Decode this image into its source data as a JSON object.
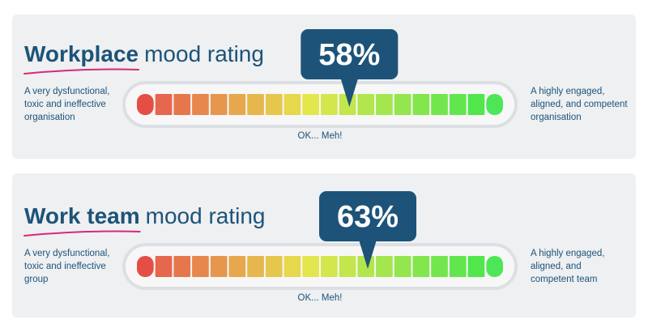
{
  "chart_data": [
    {
      "type": "gauge",
      "title_bold": "Workplace",
      "title_rest": "mood rating",
      "left_label": [
        "A very dysfunctional,",
        "toxic and ineffective",
        "organisation"
      ],
      "right_label": [
        "A highly engaged,",
        "aligned, and competent",
        "organisation"
      ],
      "center_label": "OK... Meh!",
      "values": [
        58
      ],
      "value_labels": [
        "58%"
      ],
      "xlim": [
        0,
        100
      ]
    },
    {
      "type": "gauge",
      "title_bold": "Work team",
      "title_rest": "mood rating",
      "left_label": [
        "A very dysfunctional,",
        "toxic and ineffective",
        "group"
      ],
      "right_label": [
        "A highly engaged,",
        "aligned, and",
        "competent team"
      ],
      "center_label": "OK... Meh!",
      "values": [
        63
      ],
      "value_labels": [
        "63%"
      ],
      "xlim": [
        0,
        100
      ]
    }
  ]
}
